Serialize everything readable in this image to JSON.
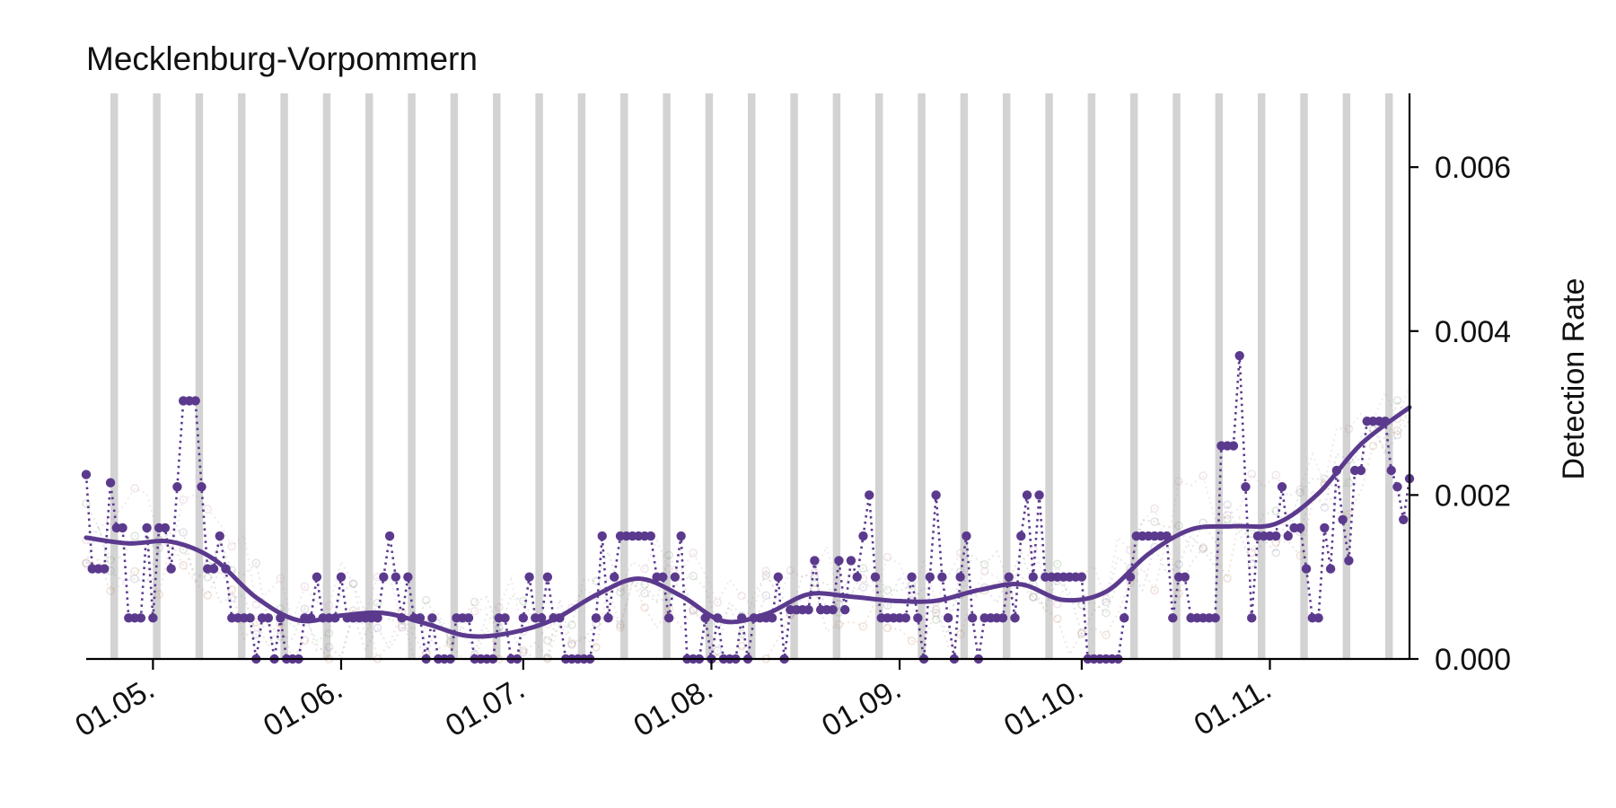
{
  "chart_data": {
    "type": "line",
    "title": "Mecklenburg-Vorpommern",
    "xlabel": "",
    "ylabel": "Detection Rate",
    "x_axis": "date",
    "x_start": "2020-04-20",
    "x_end": "2020-11-24",
    "ylim": [
      0,
      0.0069
    ],
    "y_ticks": [
      0.0,
      0.002,
      0.004,
      0.006
    ],
    "y_tick_labels": [
      "0.000",
      "0.002",
      "0.004",
      "0.006"
    ],
    "y_axis_side": "right",
    "x_ticks": [
      "2020-05-01",
      "2020-06-01",
      "2020-07-01",
      "2020-08-01",
      "2020-09-01",
      "2020-10-01",
      "2020-11-01"
    ],
    "x_tick_labels": [
      "01.05.",
      "01.06.",
      "01.07.",
      "01.08.",
      "01.09.",
      "01.10.",
      "01.11."
    ],
    "weekend_bands": "weekly",
    "grid": false,
    "legend": "none",
    "colors": {
      "main": "#5b3a8e",
      "band": "#d3d3d3",
      "axis": "#000000",
      "background_series": [
        "#c58b6a",
        "#8a8aa6",
        "#7fa07a",
        "#c896b4"
      ]
    },
    "series": [
      {
        "style": "dotted-markers",
        "points": [
          [
            "2020-04-20",
            0.00225
          ],
          [
            "2020-04-21",
            0.0011
          ],
          [
            "2020-04-22",
            0.0011
          ],
          [
            "2020-04-23",
            0.0011
          ],
          [
            "2020-04-24",
            0.00215
          ],
          [
            "2020-04-25",
            0.0016
          ],
          [
            "2020-04-26",
            0.0016
          ],
          [
            "2020-04-27",
            0.0005
          ],
          [
            "2020-04-28",
            0.0005
          ],
          [
            "2020-04-29",
            0.0005
          ],
          [
            "2020-04-30",
            0.0016
          ],
          [
            "2020-05-01",
            0.0005
          ],
          [
            "2020-05-02",
            0.0016
          ],
          [
            "2020-05-03",
            0.0016
          ],
          [
            "2020-05-04",
            0.0011
          ],
          [
            "2020-05-05",
            0.0021
          ],
          [
            "2020-05-06",
            0.00315
          ],
          [
            "2020-05-07",
            0.00315
          ],
          [
            "2020-05-08",
            0.00315
          ],
          [
            "2020-05-09",
            0.0021
          ],
          [
            "2020-05-10",
            0.0011
          ],
          [
            "2020-05-11",
            0.0011
          ],
          [
            "2020-05-12",
            0.0015
          ],
          [
            "2020-05-13",
            0.0011
          ],
          [
            "2020-05-14",
            0.0005
          ],
          [
            "2020-05-15",
            0.0005
          ],
          [
            "2020-05-16",
            0.0005
          ],
          [
            "2020-05-17",
            0.0005
          ],
          [
            "2020-05-18",
            0.0
          ],
          [
            "2020-05-19",
            0.0005
          ],
          [
            "2020-05-20",
            0.0005
          ],
          [
            "2020-05-21",
            0.0
          ],
          [
            "2020-05-22",
            0.0005
          ],
          [
            "2020-05-23",
            0.0
          ],
          [
            "2020-05-24",
            0.0
          ],
          [
            "2020-05-25",
            0.0
          ],
          [
            "2020-05-26",
            0.0005
          ],
          [
            "2020-05-27",
            0.0005
          ],
          [
            "2020-05-28",
            0.001
          ],
          [
            "2020-05-29",
            0.0005
          ],
          [
            "2020-05-30",
            0.0005
          ],
          [
            "2020-05-31",
            0.0005
          ],
          [
            "2020-06-01",
            0.001
          ],
          [
            "2020-06-02",
            0.0005
          ],
          [
            "2020-06-03",
            0.0005
          ],
          [
            "2020-06-04",
            0.0005
          ],
          [
            "2020-06-05",
            0.0005
          ],
          [
            "2020-06-06",
            0.0005
          ],
          [
            "2020-06-07",
            0.0005
          ],
          [
            "2020-06-08",
            0.001
          ],
          [
            "2020-06-09",
            0.0015
          ],
          [
            "2020-06-10",
            0.001
          ],
          [
            "2020-06-11",
            0.0005
          ],
          [
            "2020-06-12",
            0.001
          ],
          [
            "2020-06-13",
            0.0005
          ],
          [
            "2020-06-14",
            0.0005
          ],
          [
            "2020-06-15",
            0.0
          ],
          [
            "2020-06-16",
            0.0005
          ],
          [
            "2020-06-17",
            0.0
          ],
          [
            "2020-06-18",
            0.0
          ],
          [
            "2020-06-19",
            0.0
          ],
          [
            "2020-06-20",
            0.0005
          ],
          [
            "2020-06-21",
            0.0005
          ],
          [
            "2020-06-22",
            0.0005
          ],
          [
            "2020-06-23",
            0.0
          ],
          [
            "2020-06-24",
            0.0
          ],
          [
            "2020-06-25",
            0.0
          ],
          [
            "2020-06-26",
            0.0
          ],
          [
            "2020-06-27",
            0.0005
          ],
          [
            "2020-06-28",
            0.0005
          ],
          [
            "2020-06-29",
            0.0
          ],
          [
            "2020-06-30",
            0.0
          ],
          [
            "2020-07-01",
            0.0005
          ],
          [
            "2020-07-02",
            0.001
          ],
          [
            "2020-07-03",
            0.0005
          ],
          [
            "2020-07-04",
            0.0005
          ],
          [
            "2020-07-05",
            0.001
          ],
          [
            "2020-07-06",
            0.0005
          ],
          [
            "2020-07-07",
            0.0005
          ],
          [
            "2020-07-08",
            0.0
          ],
          [
            "2020-07-09",
            0.0
          ],
          [
            "2020-07-10",
            0.0
          ],
          [
            "2020-07-11",
            0.0
          ],
          [
            "2020-07-12",
            0.0
          ],
          [
            "2020-07-13",
            0.0005
          ],
          [
            "2020-07-14",
            0.0015
          ],
          [
            "2020-07-15",
            0.0005
          ],
          [
            "2020-07-16",
            0.001
          ],
          [
            "2020-07-17",
            0.0015
          ],
          [
            "2020-07-18",
            0.0015
          ],
          [
            "2020-07-19",
            0.0015
          ],
          [
            "2020-07-20",
            0.0015
          ],
          [
            "2020-07-21",
            0.0015
          ],
          [
            "2020-07-22",
            0.0015
          ],
          [
            "2020-07-23",
            0.001
          ],
          [
            "2020-07-24",
            0.001
          ],
          [
            "2020-07-25",
            0.0005
          ],
          [
            "2020-07-26",
            0.001
          ],
          [
            "2020-07-27",
            0.0015
          ],
          [
            "2020-07-28",
            0.0
          ],
          [
            "2020-07-29",
            0.0
          ],
          [
            "2020-07-30",
            0.0
          ],
          [
            "2020-07-31",
            0.0005
          ],
          [
            "2020-08-01",
            0.0
          ],
          [
            "2020-08-02",
            0.0005
          ],
          [
            "2020-08-03",
            0.0
          ],
          [
            "2020-08-04",
            0.0
          ],
          [
            "2020-08-05",
            0.0
          ],
          [
            "2020-08-06",
            0.0005
          ],
          [
            "2020-08-07",
            0.0
          ],
          [
            "2020-08-08",
            0.0005
          ],
          [
            "2020-08-09",
            0.0005
          ],
          [
            "2020-08-10",
            0.0005
          ],
          [
            "2020-08-11",
            0.0005
          ],
          [
            "2020-08-12",
            0.001
          ],
          [
            "2020-08-13",
            0.0
          ],
          [
            "2020-08-14",
            0.0006
          ],
          [
            "2020-08-15",
            0.0006
          ],
          [
            "2020-08-16",
            0.0006
          ],
          [
            "2020-08-17",
            0.0006
          ],
          [
            "2020-08-18",
            0.0012
          ],
          [
            "2020-08-19",
            0.0006
          ],
          [
            "2020-08-20",
            0.0006
          ],
          [
            "2020-08-21",
            0.0006
          ],
          [
            "2020-08-22",
            0.0012
          ],
          [
            "2020-08-23",
            0.0006
          ],
          [
            "2020-08-24",
            0.0012
          ],
          [
            "2020-08-25",
            0.001
          ],
          [
            "2020-08-26",
            0.0015
          ],
          [
            "2020-08-27",
            0.002
          ],
          [
            "2020-08-28",
            0.001
          ],
          [
            "2020-08-29",
            0.0005
          ],
          [
            "2020-08-30",
            0.0005
          ],
          [
            "2020-08-31",
            0.0005
          ],
          [
            "2020-09-01",
            0.0005
          ],
          [
            "2020-09-02",
            0.0005
          ],
          [
            "2020-09-03",
            0.001
          ],
          [
            "2020-09-04",
            0.0005
          ],
          [
            "2020-09-05",
            0.0
          ],
          [
            "2020-09-06",
            0.001
          ],
          [
            "2020-09-07",
            0.002
          ],
          [
            "2020-09-08",
            0.001
          ],
          [
            "2020-09-09",
            0.0005
          ],
          [
            "2020-09-10",
            0.0
          ],
          [
            "2020-09-11",
            0.001
          ],
          [
            "2020-09-12",
            0.0015
          ],
          [
            "2020-09-13",
            0.0005
          ],
          [
            "2020-09-14",
            0.0
          ],
          [
            "2020-09-15",
            0.0005
          ],
          [
            "2020-09-16",
            0.0005
          ],
          [
            "2020-09-17",
            0.0005
          ],
          [
            "2020-09-18",
            0.0005
          ],
          [
            "2020-09-19",
            0.001
          ],
          [
            "2020-09-20",
            0.0005
          ],
          [
            "2020-09-21",
            0.0015
          ],
          [
            "2020-09-22",
            0.002
          ],
          [
            "2020-09-23",
            0.001
          ],
          [
            "2020-09-24",
            0.002
          ],
          [
            "2020-09-25",
            0.001
          ],
          [
            "2020-09-26",
            0.001
          ],
          [
            "2020-09-27",
            0.001
          ],
          [
            "2020-09-28",
            0.001
          ],
          [
            "2020-09-29",
            0.001
          ],
          [
            "2020-09-30",
            0.001
          ],
          [
            "2020-10-01",
            0.001
          ],
          [
            "2020-10-02",
            0.0
          ],
          [
            "2020-10-03",
            0.0
          ],
          [
            "2020-10-04",
            0.0
          ],
          [
            "2020-10-05",
            0.0
          ],
          [
            "2020-10-06",
            0.0
          ],
          [
            "2020-10-07",
            0.0
          ],
          [
            "2020-10-08",
            0.0005
          ],
          [
            "2020-10-09",
            0.001
          ],
          [
            "2020-10-10",
            0.0015
          ],
          [
            "2020-10-11",
            0.0015
          ],
          [
            "2020-10-12",
            0.0015
          ],
          [
            "2020-10-13",
            0.0015
          ],
          [
            "2020-10-14",
            0.0015
          ],
          [
            "2020-10-15",
            0.0015
          ],
          [
            "2020-10-16",
            0.0005
          ],
          [
            "2020-10-17",
            0.001
          ],
          [
            "2020-10-18",
            0.001
          ],
          [
            "2020-10-19",
            0.0005
          ],
          [
            "2020-10-20",
            0.0005
          ],
          [
            "2020-10-21",
            0.0005
          ],
          [
            "2020-10-22",
            0.0005
          ],
          [
            "2020-10-23",
            0.0005
          ],
          [
            "2020-10-24",
            0.0026
          ],
          [
            "2020-10-25",
            0.0026
          ],
          [
            "2020-10-26",
            0.0026
          ],
          [
            "2020-10-27",
            0.0037
          ],
          [
            "2020-10-28",
            0.0021
          ],
          [
            "2020-10-29",
            0.0005
          ],
          [
            "2020-10-30",
            0.0015
          ],
          [
            "2020-10-31",
            0.0015
          ],
          [
            "2020-11-01",
            0.0015
          ],
          [
            "2020-11-02",
            0.0015
          ],
          [
            "2020-11-03",
            0.0021
          ],
          [
            "2020-11-04",
            0.0015
          ],
          [
            "2020-11-05",
            0.0016
          ],
          [
            "2020-11-06",
            0.0016
          ],
          [
            "2020-11-07",
            0.0011
          ],
          [
            "2020-11-08",
            0.0005
          ],
          [
            "2020-11-09",
            0.0005
          ],
          [
            "2020-11-10",
            0.0016
          ],
          [
            "2020-11-11",
            0.0011
          ],
          [
            "2020-11-12",
            0.0023
          ],
          [
            "2020-11-13",
            0.0017
          ],
          [
            "2020-11-14",
            0.0012
          ],
          [
            "2020-11-15",
            0.0023
          ],
          [
            "2020-11-16",
            0.0023
          ],
          [
            "2020-11-17",
            0.0029
          ],
          [
            "2020-11-18",
            0.0029
          ],
          [
            "2020-11-19",
            0.0029
          ],
          [
            "2020-11-20",
            0.0029
          ],
          [
            "2020-11-21",
            0.0023
          ],
          [
            "2020-11-22",
            0.0021
          ],
          [
            "2020-11-23",
            0.0017
          ],
          [
            "2020-11-24",
            0.0022
          ]
        ]
      },
      {
        "style": "smoothed-trend",
        "points": [
          [
            "2020-04-20",
            0.00148
          ],
          [
            "2020-04-27",
            0.00141
          ],
          [
            "2020-05-04",
            0.00143
          ],
          [
            "2020-05-11",
            0.00122
          ],
          [
            "2020-05-18",
            0.00075
          ],
          [
            "2020-05-25",
            0.00047
          ],
          [
            "2020-06-01",
            0.00053
          ],
          [
            "2020-06-08",
            0.00056
          ],
          [
            "2020-06-15",
            0.00043
          ],
          [
            "2020-06-22",
            0.00028
          ],
          [
            "2020-06-29",
            0.00032
          ],
          [
            "2020-07-06",
            0.00048
          ],
          [
            "2020-07-13",
            0.00078
          ],
          [
            "2020-07-20",
            0.00098
          ],
          [
            "2020-07-27",
            0.00077
          ],
          [
            "2020-08-03",
            0.00046
          ],
          [
            "2020-08-10",
            0.00055
          ],
          [
            "2020-08-17",
            0.00079
          ],
          [
            "2020-08-24",
            0.00076
          ],
          [
            "2020-08-31",
            0.00071
          ],
          [
            "2020-09-07",
            0.00071
          ],
          [
            "2020-09-14",
            0.00084
          ],
          [
            "2020-09-21",
            0.00091
          ],
          [
            "2020-09-28",
            0.00072
          ],
          [
            "2020-10-05",
            0.00082
          ],
          [
            "2020-10-12",
            0.00128
          ],
          [
            "2020-10-19",
            0.00158
          ],
          [
            "2020-10-26",
            0.00162
          ],
          [
            "2020-11-02",
            0.00165
          ],
          [
            "2020-11-09",
            0.00202
          ],
          [
            "2020-11-16",
            0.00262
          ],
          [
            "2020-11-24",
            0.00307
          ]
        ]
      }
    ]
  }
}
